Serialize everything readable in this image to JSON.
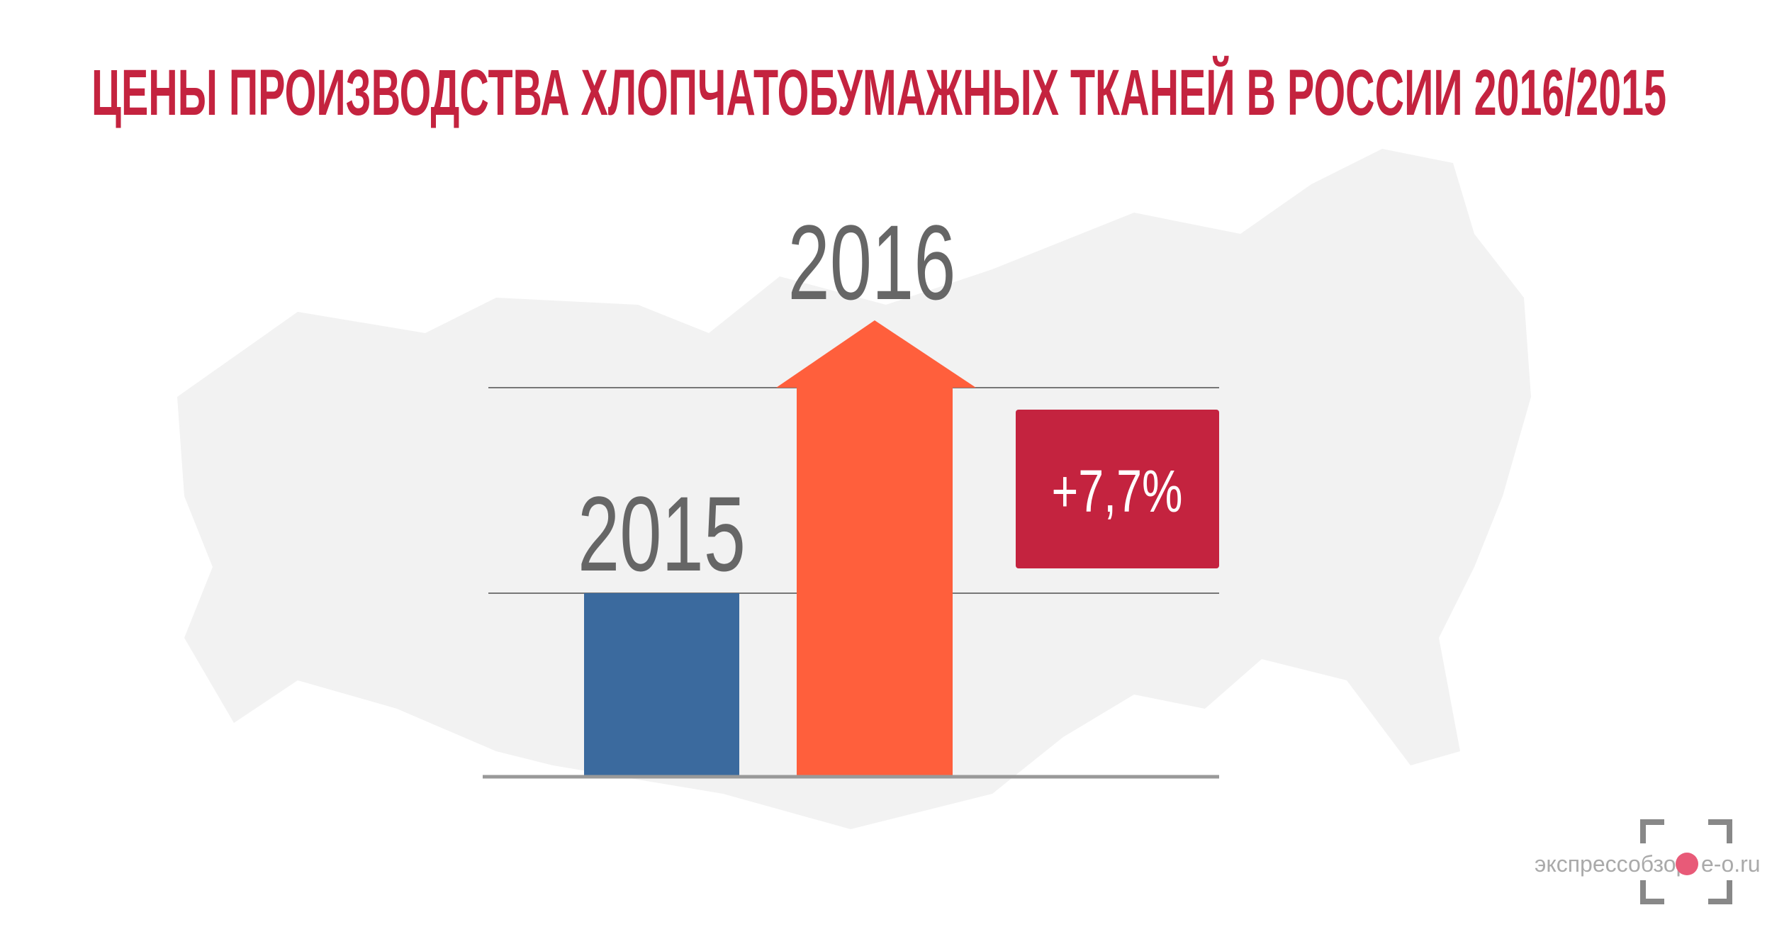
{
  "chart_data": {
    "type": "bar",
    "title": "ЦЕНЫ ПРОИЗВОДСТВА ХЛОПЧАТОБУМАЖНЫХ ТКАНЕЙ В РОССИИ 2016/2015",
    "categories": [
      "2015",
      "2016"
    ],
    "colors": [
      "#3b6a9e",
      "#ff5f3c"
    ],
    "annotation": "+7,7%",
    "annotation_color": "#c4233f",
    "watermark": [
      "экспрессобзор",
      "e-o.ru"
    ]
  }
}
